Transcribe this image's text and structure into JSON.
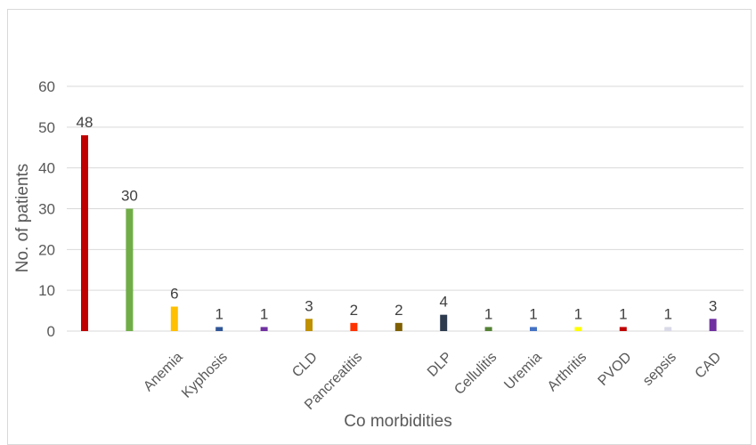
{
  "chart_data": {
    "type": "bar",
    "title": "",
    "xlabel": "Co morbidities",
    "ylabel": "No. of patients",
    "ylim": [
      0,
      60
    ],
    "yticks": [
      0,
      10,
      20,
      30,
      40,
      50,
      60
    ],
    "grid": true,
    "legend": "none",
    "categories": [
      "",
      "",
      "Anemia",
      "Kyphosis",
      "",
      "CLD",
      "Pancreatitis",
      "",
      "DLP",
      "Cellulitis",
      "Uremia",
      "Arthritis",
      "PVOD",
      "sepsis",
      "CAD"
    ],
    "values": [
      48,
      30,
      6,
      1,
      1,
      3,
      2,
      2,
      4,
      1,
      1,
      1,
      1,
      1,
      3
    ],
    "colors": [
      "#c00000",
      "#70ad47",
      "#ffc000",
      "#2f5597",
      "#7030a0",
      "#bf9000",
      "#ff3300",
      "#7f6000",
      "#2e3a4e",
      "#548235",
      "#4472c4",
      "#ffff00",
      "#c00000",
      "#d9d9e8",
      "#7030a0"
    ]
  }
}
